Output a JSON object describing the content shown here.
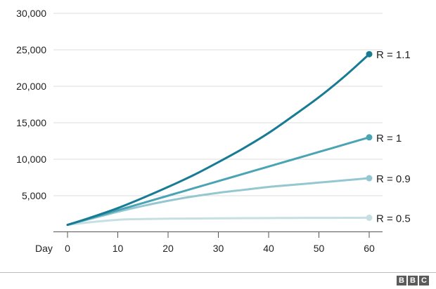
{
  "chart_data": {
    "type": "line",
    "title": "",
    "xlabel": "Day",
    "ylabel": "",
    "xlim": [
      0,
      60
    ],
    "ylim": [
      0,
      30000
    ],
    "x_ticks": [
      0,
      10,
      20,
      30,
      40,
      50,
      60
    ],
    "y_ticks": [
      5000,
      10000,
      15000,
      20000,
      25000,
      30000
    ],
    "y_tick_labels": [
      "5,000",
      "10,000",
      "15,000",
      "20,000",
      "25,000",
      "30,000"
    ],
    "grid": "horizontal",
    "legend": "end-of-line labels",
    "series": [
      {
        "name": "R = 0.5",
        "color": "#c6dfe3",
        "x": [
          0,
          5,
          10,
          15,
          20,
          25,
          30,
          35,
          40,
          45,
          50,
          55,
          60
        ],
        "y": [
          1000,
          1400,
          1700,
          1800,
          1850,
          1870,
          1900,
          1920,
          1940,
          1950,
          1960,
          1970,
          1980
        ]
      },
      {
        "name": "R = 0.9",
        "color": "#94c7d1",
        "x": [
          0,
          5,
          10,
          15,
          20,
          25,
          30,
          35,
          40,
          45,
          50,
          55,
          60
        ],
        "y": [
          1000,
          1900,
          2800,
          3600,
          4300,
          4900,
          5400,
          5800,
          6200,
          6500,
          6800,
          7100,
          7400
        ]
      },
      {
        "name": "R = 1",
        "color": "#4aa4b4",
        "x": [
          0,
          5,
          10,
          15,
          20,
          25,
          30,
          35,
          40,
          45,
          50,
          55,
          60
        ],
        "y": [
          1000,
          2000,
          3000,
          4000,
          5000,
          6000,
          7000,
          8000,
          9000,
          10000,
          11000,
          12000,
          13000
        ]
      },
      {
        "name": "R = 1.1",
        "color": "#177b93",
        "x": [
          0,
          5,
          10,
          15,
          20,
          25,
          30,
          35,
          40,
          45,
          50,
          55,
          60
        ],
        "y": [
          1000,
          2100,
          3300,
          4700,
          6200,
          7800,
          9600,
          11500,
          13600,
          16000,
          18500,
          21300,
          24400
        ]
      }
    ]
  },
  "footer": {
    "logo_letters": [
      "B",
      "B",
      "C"
    ]
  }
}
